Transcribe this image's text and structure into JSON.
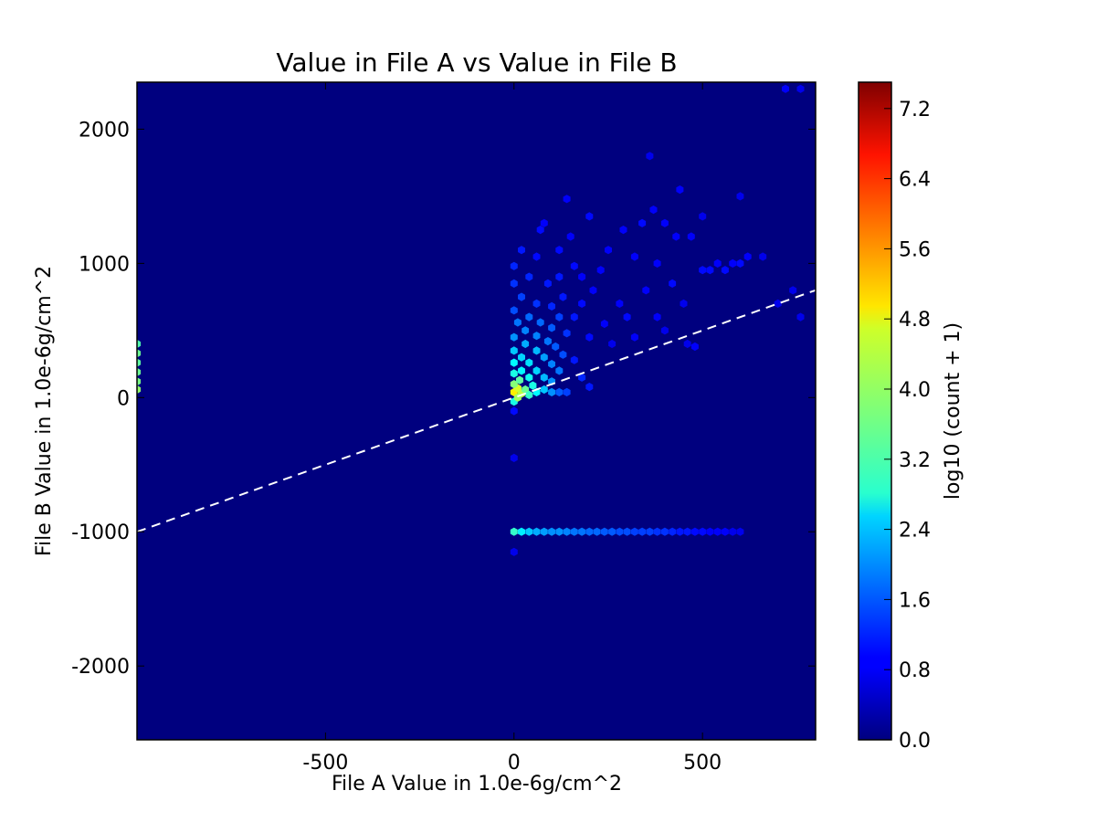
{
  "chart_data": {
    "type": "heatmap",
    "subtype": "hexbin",
    "title": "Value in File A vs Value in File B",
    "xlabel": "File A Value in 1.0e-6g/cm^2",
    "ylabel": "File B Value in 1.0e-6g/cm^2",
    "xlim": [
      -1000,
      800
    ],
    "ylim": [
      -2550,
      2350
    ],
    "xticks": [
      -500,
      0,
      500
    ],
    "xtick_labels": [
      "-500",
      "0",
      "500"
    ],
    "yticks": [
      -2000,
      -1000,
      0,
      1000,
      2000
    ],
    "ytick_labels": [
      "-2000",
      "-1000",
      "0",
      "1000",
      "2000"
    ],
    "grid": false,
    "background_color": "#00007f",
    "reference_line": {
      "style": "dashed",
      "color": "#ffffff",
      "points": [
        [
          -1000,
          -1000
        ],
        [
          800,
          800
        ]
      ]
    },
    "colorbar": {
      "label": "log10 (count + 1)",
      "range": [
        0.0,
        7.5
      ],
      "ticks": [
        0.0,
        0.8,
        1.6,
        2.4,
        3.2,
        4.0,
        4.8,
        5.6,
        6.4,
        7.2
      ],
      "tick_labels": [
        "0.0",
        "0.8",
        "1.6",
        "2.4",
        "3.2",
        "4.0",
        "4.8",
        "5.6",
        "6.4",
        "7.2"
      ],
      "colormap": "jet"
    },
    "bins": [
      {
        "x": -1000,
        "y": 400,
        "v": 3.4
      },
      {
        "x": -1000,
        "y": 330,
        "v": 3.6
      },
      {
        "x": -1000,
        "y": 260,
        "v": 3.5
      },
      {
        "x": -1000,
        "y": 190,
        "v": 3.6
      },
      {
        "x": -1000,
        "y": 120,
        "v": 3.7
      },
      {
        "x": -1000,
        "y": 60,
        "v": 3.9
      },
      {
        "x": 0,
        "y": 40,
        "v": 4.8
      },
      {
        "x": 10,
        "y": 70,
        "v": 4.4
      },
      {
        "x": 20,
        "y": 30,
        "v": 4.2
      },
      {
        "x": 0,
        "y": 100,
        "v": 3.8
      },
      {
        "x": 15,
        "y": 130,
        "v": 3.5
      },
      {
        "x": 30,
        "y": 60,
        "v": 3.6
      },
      {
        "x": 40,
        "y": 20,
        "v": 3.2
      },
      {
        "x": 0,
        "y": -30,
        "v": 3.0
      },
      {
        "x": 10,
        "y": 0,
        "v": 4.0
      },
      {
        "x": 0,
        "y": 180,
        "v": 3.0
      },
      {
        "x": 20,
        "y": 200,
        "v": 2.8
      },
      {
        "x": 40,
        "y": 150,
        "v": 2.9
      },
      {
        "x": 50,
        "y": 90,
        "v": 3.0
      },
      {
        "x": 60,
        "y": 40,
        "v": 2.8
      },
      {
        "x": 80,
        "y": 60,
        "v": 2.4
      },
      {
        "x": 100,
        "y": 40,
        "v": 2.0
      },
      {
        "x": 120,
        "y": 40,
        "v": 1.6
      },
      {
        "x": 140,
        "y": 40,
        "v": 1.4
      },
      {
        "x": 0,
        "y": 260,
        "v": 2.8
      },
      {
        "x": 20,
        "y": 300,
        "v": 2.5
      },
      {
        "x": 40,
        "y": 260,
        "v": 2.6
      },
      {
        "x": 60,
        "y": 200,
        "v": 2.5
      },
      {
        "x": 80,
        "y": 150,
        "v": 2.3
      },
      {
        "x": 100,
        "y": 120,
        "v": 2.0
      },
      {
        "x": 0,
        "y": 350,
        "v": 2.4
      },
      {
        "x": 30,
        "y": 400,
        "v": 2.2
      },
      {
        "x": 60,
        "y": 350,
        "v": 2.3
      },
      {
        "x": 80,
        "y": 300,
        "v": 2.1
      },
      {
        "x": 100,
        "y": 250,
        "v": 1.9
      },
      {
        "x": 120,
        "y": 200,
        "v": 1.8
      },
      {
        "x": 0,
        "y": 450,
        "v": 2.0
      },
      {
        "x": 30,
        "y": 500,
        "v": 1.9
      },
      {
        "x": 60,
        "y": 460,
        "v": 1.9
      },
      {
        "x": 90,
        "y": 420,
        "v": 1.8
      },
      {
        "x": 110,
        "y": 380,
        "v": 1.6
      },
      {
        "x": 130,
        "y": 320,
        "v": 1.5
      },
      {
        "x": 10,
        "y": 560,
        "v": 1.8
      },
      {
        "x": 40,
        "y": 600,
        "v": 1.7
      },
      {
        "x": 70,
        "y": 560,
        "v": 1.7
      },
      {
        "x": 100,
        "y": 520,
        "v": 1.6
      },
      {
        "x": 120,
        "y": 600,
        "v": 1.4
      },
      {
        "x": 140,
        "y": 480,
        "v": 1.3
      },
      {
        "x": 0,
        "y": 650,
        "v": 1.5
      },
      {
        "x": 20,
        "y": 750,
        "v": 1.4
      },
      {
        "x": 60,
        "y": 700,
        "v": 1.3
      },
      {
        "x": 100,
        "y": 680,
        "v": 1.2
      },
      {
        "x": 130,
        "y": 750,
        "v": 1.1
      },
      {
        "x": 0,
        "y": 850,
        "v": 1.3
      },
      {
        "x": 40,
        "y": 900,
        "v": 1.2
      },
      {
        "x": 90,
        "y": 850,
        "v": 1.1
      },
      {
        "x": 120,
        "y": 900,
        "v": 1.1
      },
      {
        "x": 0,
        "y": 980,
        "v": 1.2
      },
      {
        "x": 20,
        "y": 1100,
        "v": 1.1
      },
      {
        "x": 60,
        "y": 1050,
        "v": 1.0
      },
      {
        "x": 70,
        "y": 1250,
        "v": 1.0
      },
      {
        "x": 80,
        "y": 1300,
        "v": 0.9
      },
      {
        "x": 120,
        "y": 1100,
        "v": 1.0
      },
      {
        "x": 140,
        "y": 1480,
        "v": 0.9
      },
      {
        "x": 150,
        "y": 1200,
        "v": 0.9
      },
      {
        "x": 160,
        "y": 980,
        "v": 1.0
      },
      {
        "x": 180,
        "y": 900,
        "v": 0.9
      },
      {
        "x": 200,
        "y": 1350,
        "v": 1.0
      },
      {
        "x": 210,
        "y": 800,
        "v": 0.9
      },
      {
        "x": 160,
        "y": 600,
        "v": 1.1
      },
      {
        "x": 180,
        "y": 700,
        "v": 1.0
      },
      {
        "x": 200,
        "y": 450,
        "v": 1.0
      },
      {
        "x": 160,
        "y": 280,
        "v": 1.1
      },
      {
        "x": 180,
        "y": 150,
        "v": 1.2
      },
      {
        "x": 200,
        "y": 80,
        "v": 1.1
      },
      {
        "x": 230,
        "y": 950,
        "v": 0.9
      },
      {
        "x": 250,
        "y": 1100,
        "v": 0.9
      },
      {
        "x": 240,
        "y": 550,
        "v": 0.9
      },
      {
        "x": 260,
        "y": 400,
        "v": 0.8
      },
      {
        "x": 280,
        "y": 700,
        "v": 0.9
      },
      {
        "x": 290,
        "y": 1250,
        "v": 0.9
      },
      {
        "x": 300,
        "y": 600,
        "v": 1.0
      },
      {
        "x": 320,
        "y": 1050,
        "v": 0.9
      },
      {
        "x": 320,
        "y": 450,
        "v": 0.9
      },
      {
        "x": 340,
        "y": 1300,
        "v": 1.0
      },
      {
        "x": 350,
        "y": 800,
        "v": 0.9
      },
      {
        "x": 370,
        "y": 1400,
        "v": 0.9
      },
      {
        "x": 380,
        "y": 600,
        "v": 0.9
      },
      {
        "x": 380,
        "y": 1000,
        "v": 0.9
      },
      {
        "x": 400,
        "y": 1300,
        "v": 0.9
      },
      {
        "x": 400,
        "y": 500,
        "v": 0.8
      },
      {
        "x": 420,
        "y": 850,
        "v": 1.0
      },
      {
        "x": 440,
        "y": 1550,
        "v": 0.9
      },
      {
        "x": 450,
        "y": 700,
        "v": 0.8
      },
      {
        "x": 470,
        "y": 1200,
        "v": 0.9
      },
      {
        "x": 480,
        "y": 380,
        "v": 0.9
      },
      {
        "x": 500,
        "y": 950,
        "v": 1.0
      },
      {
        "x": 520,
        "y": 950,
        "v": 1.0
      },
      {
        "x": 540,
        "y": 1000,
        "v": 0.9
      },
      {
        "x": 560,
        "y": 950,
        "v": 1.0
      },
      {
        "x": 580,
        "y": 1000,
        "v": 0.9
      },
      {
        "x": 600,
        "y": 1000,
        "v": 1.0
      },
      {
        "x": 620,
        "y": 1050,
        "v": 0.9
      },
      {
        "x": 660,
        "y": 1050,
        "v": 0.8
      },
      {
        "x": 700,
        "y": 700,
        "v": 0.8
      },
      {
        "x": 740,
        "y": 800,
        "v": 0.8
      },
      {
        "x": 760,
        "y": 600,
        "v": 0.8
      },
      {
        "x": 720,
        "y": 2300,
        "v": 0.9
      },
      {
        "x": 760,
        "y": 2300,
        "v": 0.8
      },
      {
        "x": 360,
        "y": 1800,
        "v": 0.8
      },
      {
        "x": 600,
        "y": 1500,
        "v": 0.8
      },
      {
        "x": 430,
        "y": 1200,
        "v": 0.9
      },
      {
        "x": 500,
        "y": 1350,
        "v": 0.8
      },
      {
        "x": 460,
        "y": 400,
        "v": 0.8
      },
      {
        "x": 0,
        "y": -450,
        "v": 0.8
      },
      {
        "x": 0,
        "y": -1150,
        "v": 0.8
      },
      {
        "x": 0,
        "y": -100,
        "v": 1.0
      },
      {
        "x": 0,
        "y": -1000,
        "v": 3.2
      },
      {
        "x": 20,
        "y": -1000,
        "v": 2.7
      },
      {
        "x": 40,
        "y": -1000,
        "v": 2.4
      },
      {
        "x": 60,
        "y": -1000,
        "v": 2.2
      },
      {
        "x": 80,
        "y": -1000,
        "v": 2.1
      },
      {
        "x": 100,
        "y": -1000,
        "v": 2.0
      },
      {
        "x": 120,
        "y": -1000,
        "v": 2.0
      },
      {
        "x": 140,
        "y": -1000,
        "v": 1.9
      },
      {
        "x": 160,
        "y": -1000,
        "v": 1.8
      },
      {
        "x": 180,
        "y": -1000,
        "v": 1.8
      },
      {
        "x": 200,
        "y": -1000,
        "v": 1.7
      },
      {
        "x": 220,
        "y": -1000,
        "v": 1.7
      },
      {
        "x": 240,
        "y": -1000,
        "v": 1.6
      },
      {
        "x": 260,
        "y": -1000,
        "v": 1.6
      },
      {
        "x": 280,
        "y": -1000,
        "v": 1.5
      },
      {
        "x": 300,
        "y": -1000,
        "v": 1.5
      },
      {
        "x": 320,
        "y": -1000,
        "v": 1.4
      },
      {
        "x": 340,
        "y": -1000,
        "v": 1.4
      },
      {
        "x": 360,
        "y": -1000,
        "v": 1.4
      },
      {
        "x": 380,
        "y": -1000,
        "v": 1.3
      },
      {
        "x": 400,
        "y": -1000,
        "v": 1.3
      },
      {
        "x": 420,
        "y": -1000,
        "v": 1.2
      },
      {
        "x": 440,
        "y": -1000,
        "v": 1.1
      },
      {
        "x": 460,
        "y": -1000,
        "v": 1.1
      },
      {
        "x": 480,
        "y": -1000,
        "v": 1.0
      },
      {
        "x": 500,
        "y": -1000,
        "v": 1.0
      },
      {
        "x": 520,
        "y": -1000,
        "v": 0.9
      },
      {
        "x": 540,
        "y": -1000,
        "v": 0.9
      },
      {
        "x": 560,
        "y": -1000,
        "v": 0.9
      },
      {
        "x": 580,
        "y": -1000,
        "v": 0.8
      },
      {
        "x": 600,
        "y": -1000,
        "v": 0.8
      }
    ]
  }
}
